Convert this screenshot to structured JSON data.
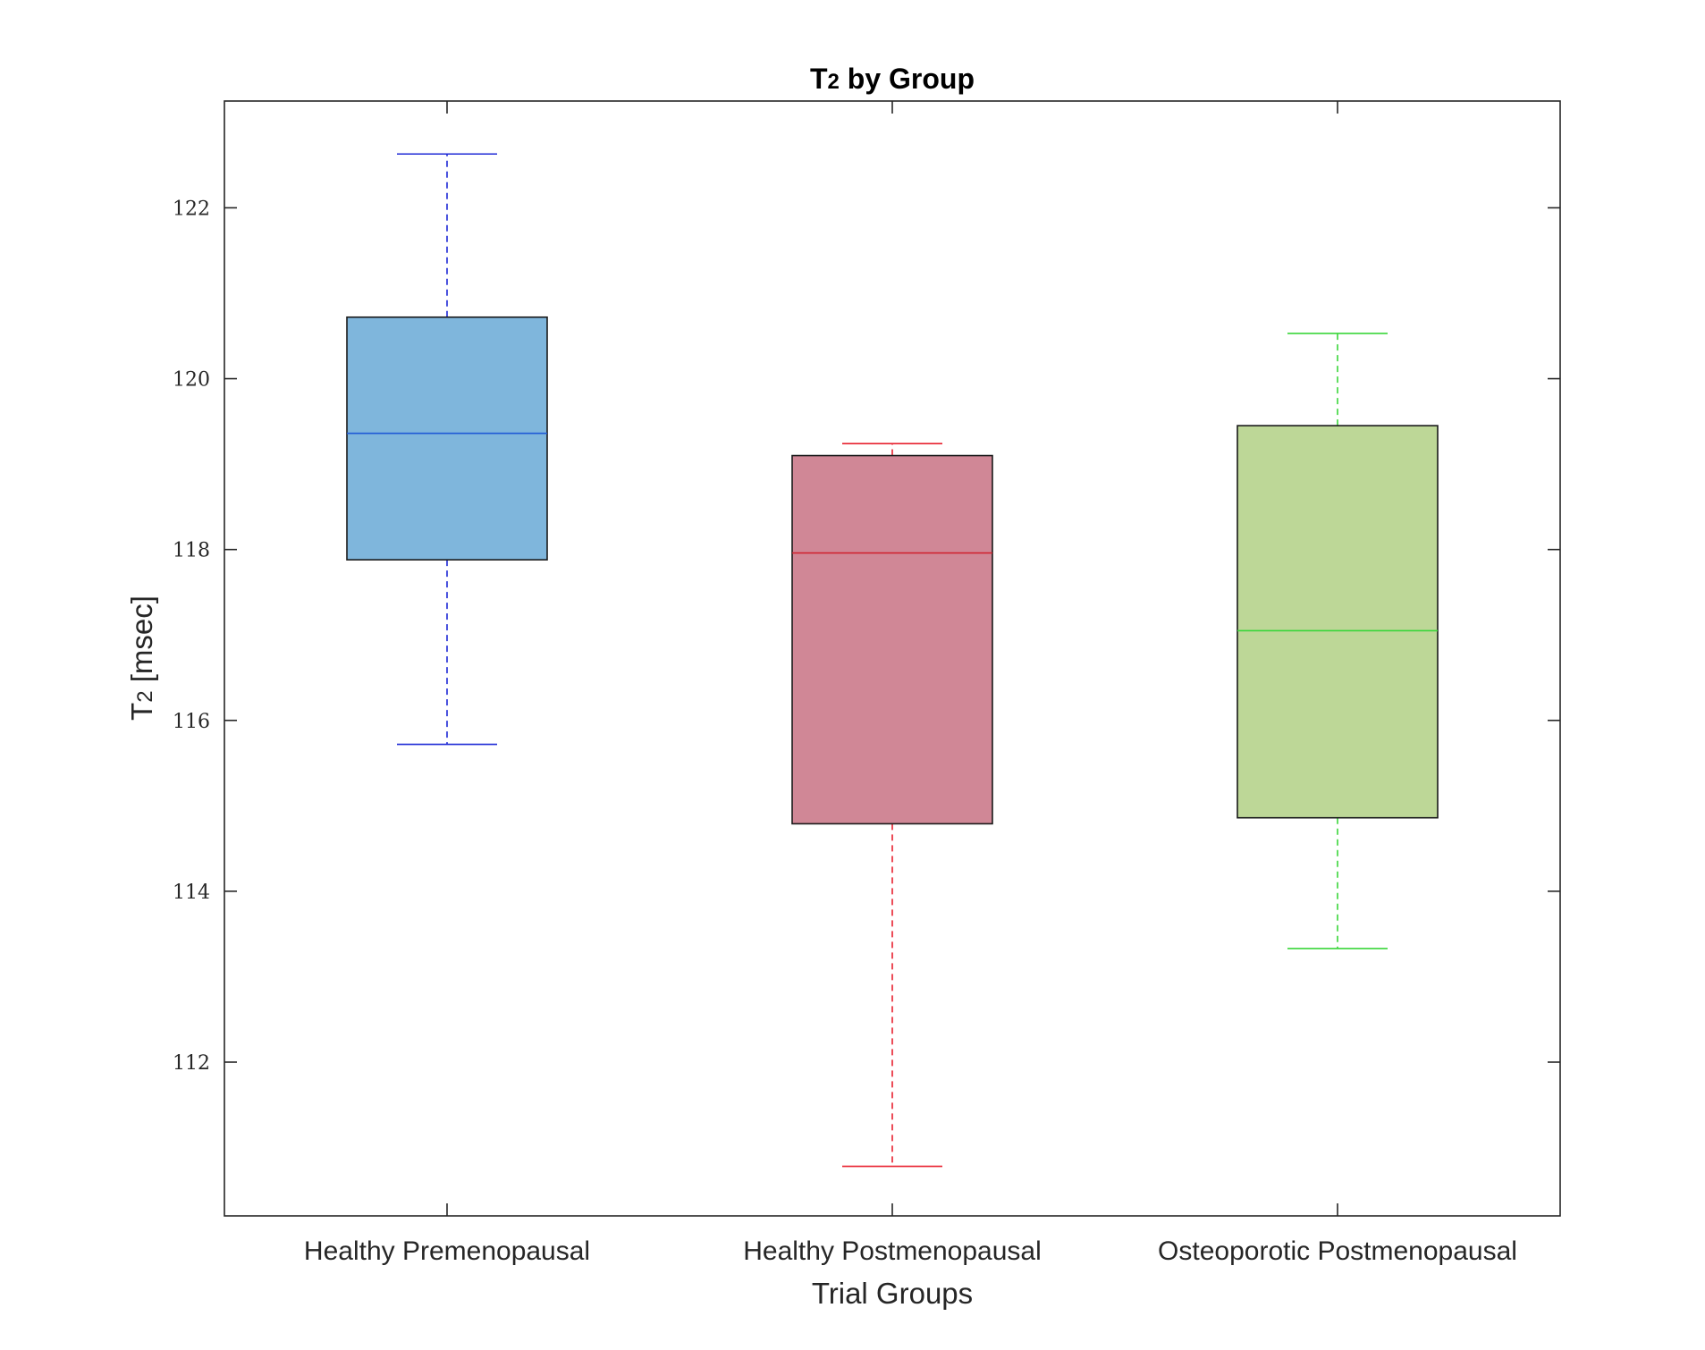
{
  "chart_data": {
    "type": "box",
    "title_main": "T",
    "title_sub": "2",
    "title_rest": " by Group",
    "xlabel": "Trial Groups",
    "ylabel_main": "T",
    "ylabel_sub": "2",
    "ylabel_rest": " [msec]",
    "ylim": [
      110.2,
      123.25
    ],
    "yticks": [
      112,
      114,
      116,
      118,
      120,
      122
    ],
    "grid": false,
    "categories": [
      "Healthy Premenopausal",
      "Healthy Postmenopausal",
      "Osteoporotic Postmenopausal"
    ],
    "boxes": [
      {
        "category": "Healthy Premenopausal",
        "whisker_low": 115.72,
        "q1": 117.88,
        "median": 119.36,
        "q3": 120.72,
        "whisker_high": 122.63,
        "fill": "#7fb6dc",
        "line_color": "#1f2ad6",
        "median_color": "#1f5ad6"
      },
      {
        "category": "Healthy Postmenopausal",
        "whisker_low": 110.78,
        "q1": 114.79,
        "median": 117.96,
        "q3": 119.1,
        "whisker_high": 119.24,
        "fill": "#d08796",
        "line_color": "#e8202e",
        "median_color": "#d01e2a"
      },
      {
        "category": "Osteoporotic Postmenopausal",
        "whisker_low": 113.33,
        "q1": 114.86,
        "median": 117.05,
        "q3": 119.45,
        "whisker_high": 120.53,
        "fill": "#bdd797",
        "line_color": "#3ad63a",
        "median_color": "#3ad63a"
      }
    ]
  }
}
